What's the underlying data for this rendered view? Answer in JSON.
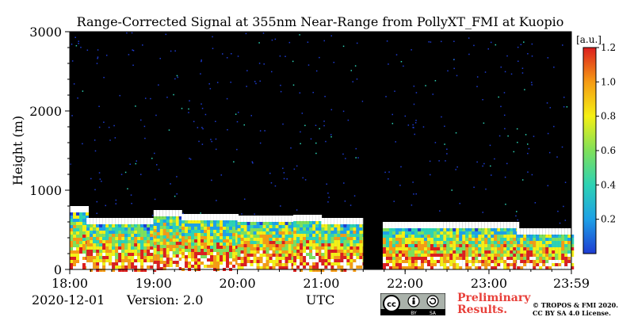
{
  "chart_data": {
    "type": "heatmap",
    "title": "Range-Corrected Signal at 355nm Near-Range from PollyXT_FMI at Kuopio",
    "xlabel": "",
    "ylabel": "Height (m)",
    "x_ticks": [
      "18:00",
      "19:00",
      "20:00",
      "21:00",
      "22:00",
      "23:00",
      "23:59"
    ],
    "x_range": [
      "18:00",
      "23:59"
    ],
    "y_ticks": [
      0,
      1000,
      2000,
      3000
    ],
    "ylim": [
      0,
      3000
    ],
    "colorbar": {
      "unit": "[a.u.]",
      "range": [
        0,
        1.2
      ],
      "ticks": [
        "0.2",
        "0.4",
        "0.6",
        "0.8",
        "1.0",
        "1.2"
      ],
      "colormap": [
        "#1e3cd2",
        "#1ea0e6",
        "#2dd2b4",
        "#7fe05a",
        "#f5f014",
        "#f59b14",
        "#dc1e1e"
      ]
    },
    "background_color": "#000000",
    "observations": [
      {
        "start": "18:00",
        "end": "18:12",
        "layer_top": 800
      },
      {
        "start": "18:12",
        "end": "19:00",
        "layer_top": 650
      },
      {
        "start": "19:00",
        "end": "19:20",
        "layer_top": 750
      },
      {
        "start": "19:20",
        "end": "20:00",
        "layer_top": 700
      },
      {
        "start": "20:00",
        "end": "20:40",
        "layer_top": 680
      },
      {
        "start": "20:40",
        "end": "21:00",
        "layer_top": 690
      },
      {
        "start": "21:00",
        "end": "21:30",
        "layer_top": 650
      },
      {
        "start": "21:30",
        "end": "21:44",
        "layer_top": 0
      },
      {
        "start": "21:44",
        "end": "22:25",
        "layer_top": 600
      },
      {
        "start": "22:25",
        "end": "23:20",
        "layer_top": 600
      },
      {
        "start": "23:20",
        "end": "23:59",
        "layer_top": 520
      }
    ]
  },
  "footer": {
    "date": "2020-12-01",
    "version": "Version: 2.0",
    "time_unit": "UTC",
    "preliminary_line1": "Preliminary",
    "preliminary_line2": "Results.",
    "copyright_line1": "© TROPOS & FMI 2020.",
    "copyright_line2": "CC BY SA 4.0 License.",
    "license_badge": [
      "cc",
      "BY",
      "SA"
    ]
  },
  "colors": {
    "preliminary": "#e8403a"
  }
}
